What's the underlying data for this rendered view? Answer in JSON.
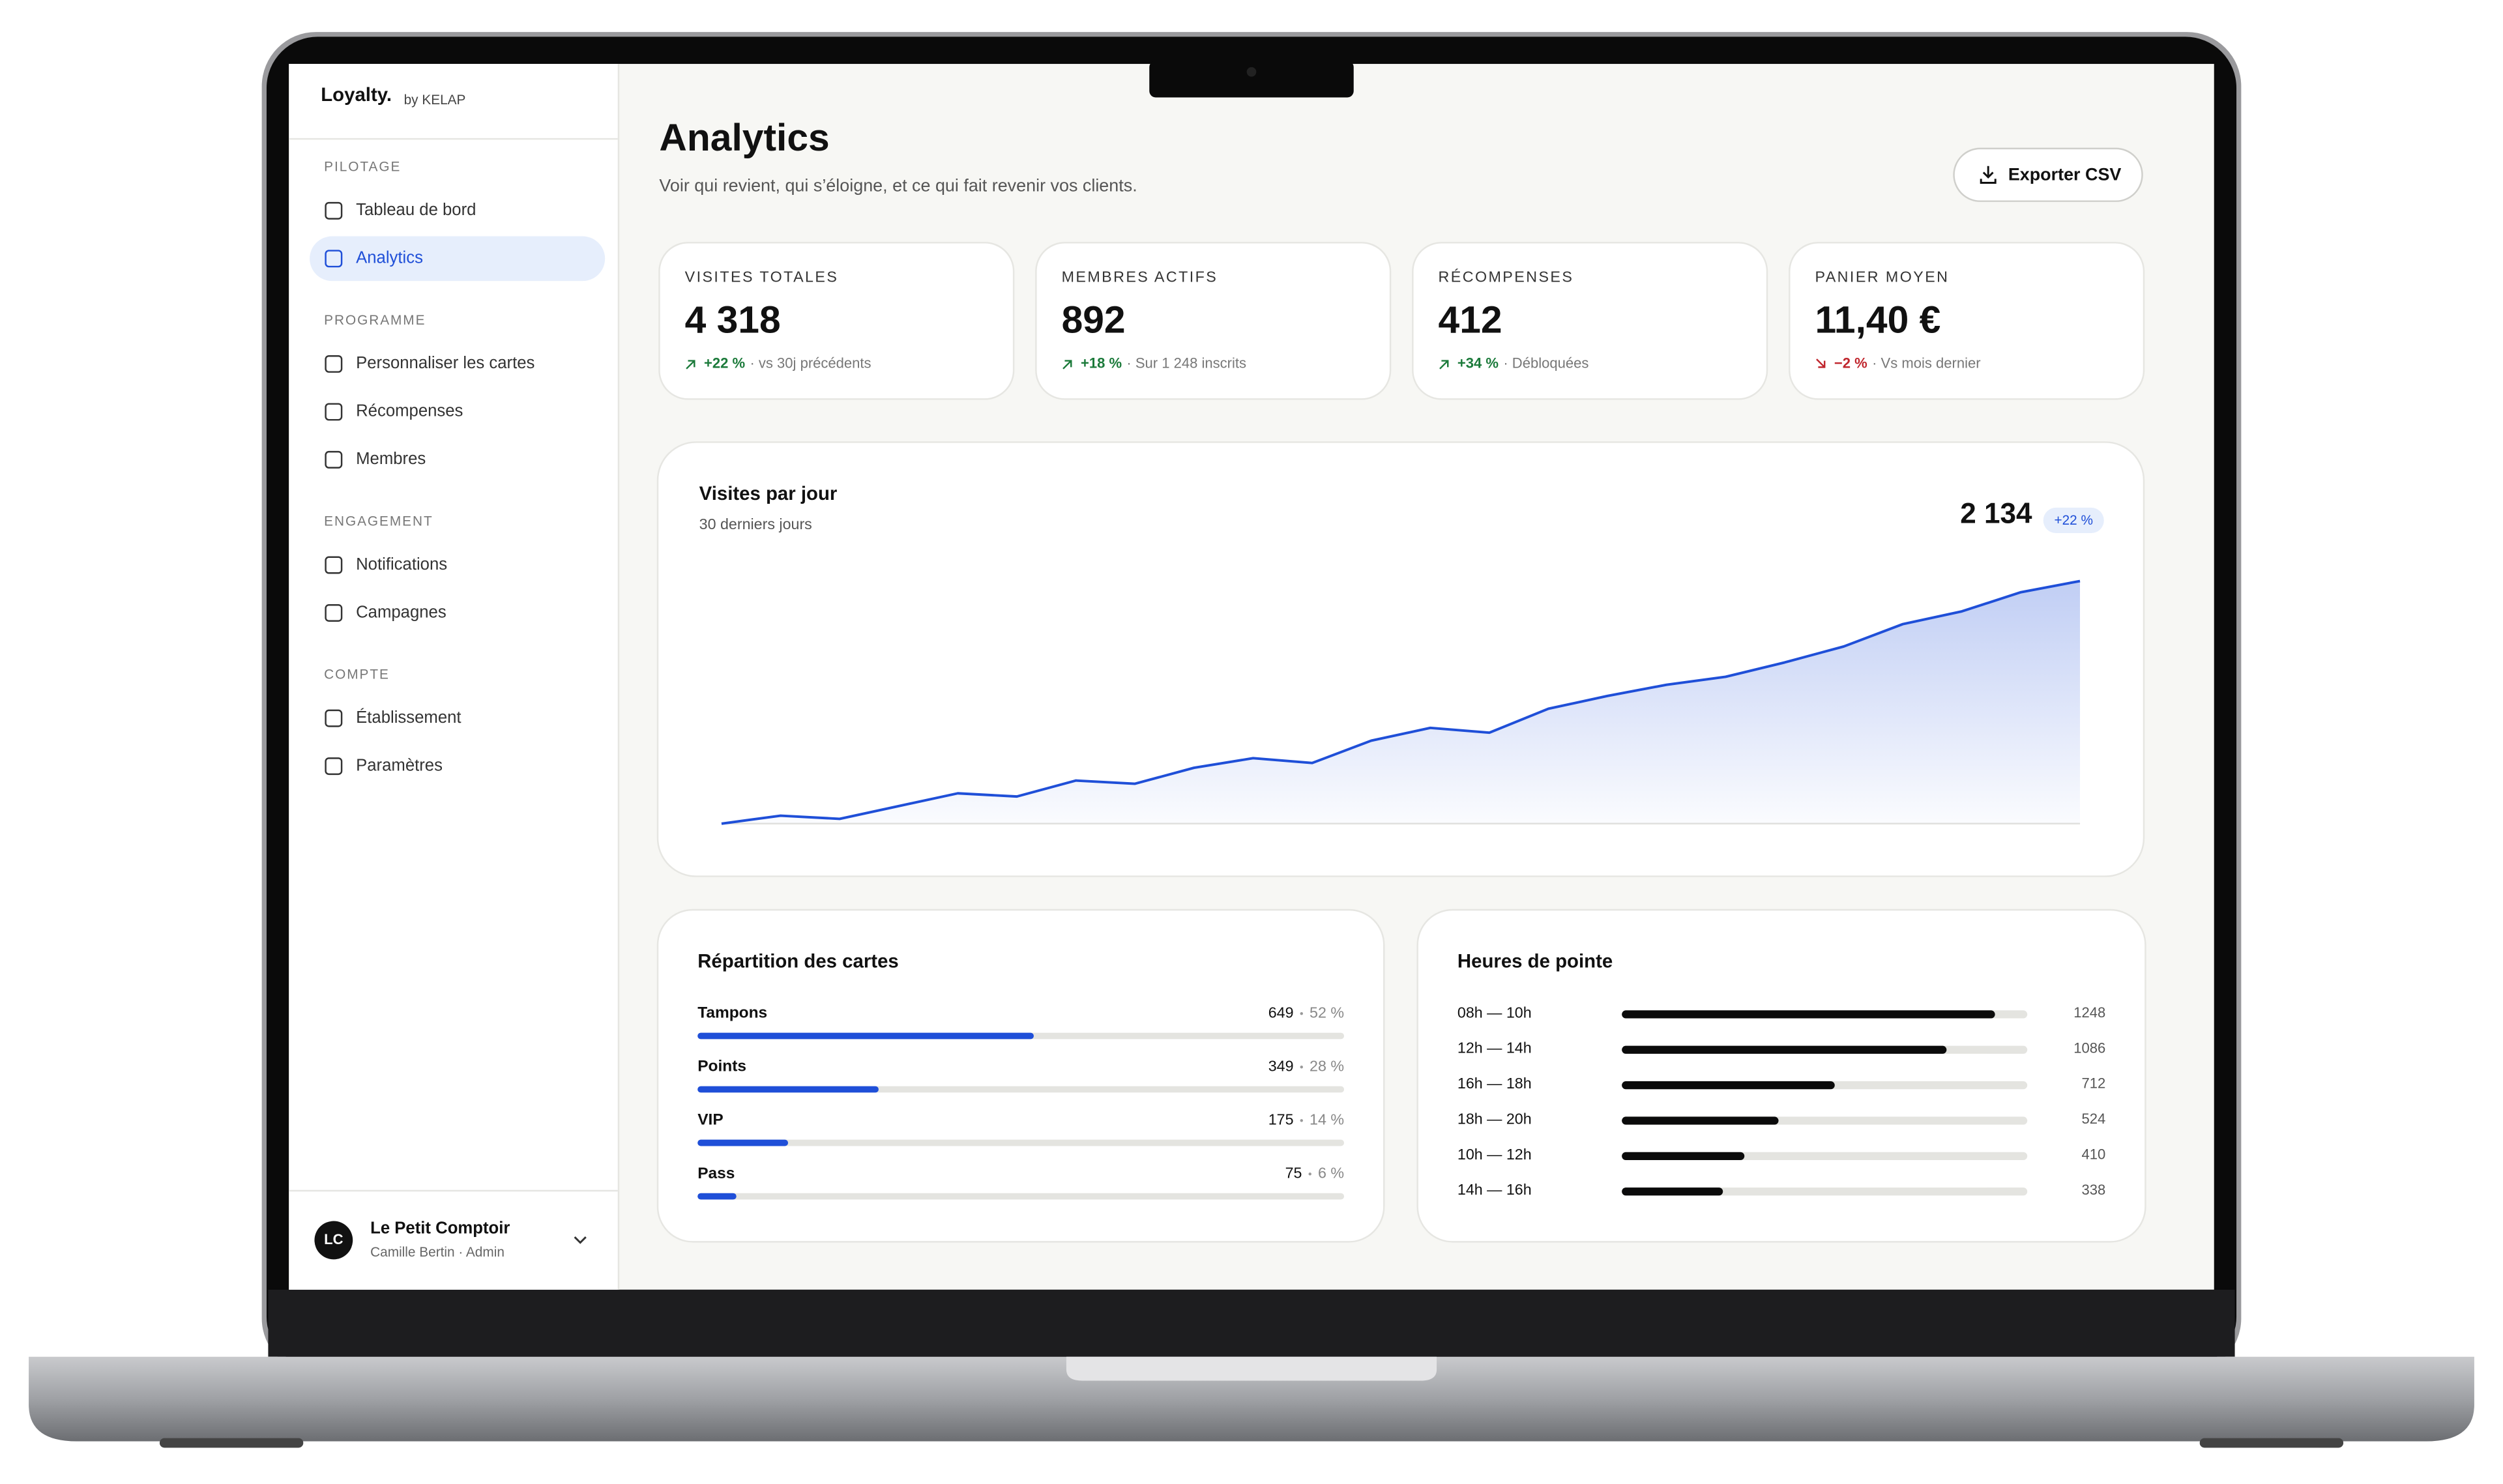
{
  "brand": {
    "name": "Loyalty.",
    "by": "by KELAP"
  },
  "nav": [
    {
      "section": "PILOTAGE",
      "items": [
        "Tableau de bord",
        "Analytics"
      ]
    },
    {
      "section": "PROGRAMME",
      "items": [
        "Personnaliser les cartes",
        "Récompenses",
        "Membres"
      ]
    },
    {
      "section": "ENGAGEMENT",
      "items": [
        "Notifications",
        "Campagnes"
      ]
    },
    {
      "section": "COMPTE",
      "items": [
        "Établissement",
        "Paramètres"
      ]
    }
  ],
  "active": [
    0,
    1
  ],
  "account": {
    "initials": "LC",
    "name": "Le Petit Comptoir",
    "role": "Camille Bertin · Admin"
  },
  "header": {
    "title": "Analytics",
    "subtitle": "Voir qui revient, qui s’éloigne, et ce qui fait revenir vos clients.",
    "button": "Exporter CSV"
  },
  "kpis": [
    {
      "label": "VISITES TOTALES",
      "value": "4 318",
      "delta": "+22 %",
      "note": "· vs 30j précédents",
      "direction": "up"
    },
    {
      "label": "MEMBRES ACTIFS",
      "value": "892",
      "delta": "+18 %",
      "note": "· Sur 1 248 inscrits",
      "direction": "up"
    },
    {
      "label": "RÉCOMPENSES",
      "value": "412",
      "delta": "+34 %",
      "note": "· Débloquées",
      "direction": "up"
    },
    {
      "label": "PANIER MOYEN",
      "value": "11,40 €",
      "delta": "−2 %",
      "note": "· Vs mois dernier",
      "direction": "down"
    }
  ],
  "chart_data": {
    "type": "line",
    "title": "Visites par jour",
    "subtitle": "30 derniers jours",
    "total": "2 134",
    "change": "+22 %",
    "values": [
      0,
      5,
      3,
      11,
      19,
      17,
      27,
      25,
      35,
      41,
      38,
      52,
      60,
      57,
      72,
      80,
      87,
      92,
      101,
      111,
      125,
      133,
      145,
      152
    ],
    "ylim": [
      0,
      152
    ],
    "color": "#1f4fd8"
  },
  "distribution": {
    "title": "Répartition des cartes",
    "xlim": [
      0,
      100
    ],
    "color": "#1f4fd8",
    "items": [
      {
        "name": "Tampons",
        "count": 649,
        "share": 52,
        "share_label": "52 %"
      },
      {
        "name": "Points",
        "count": 349,
        "share": 28,
        "share_label": "28 %"
      },
      {
        "name": "VIP",
        "count": 175,
        "share": 14,
        "share_label": "14 %"
      },
      {
        "name": "Pass",
        "count": 75,
        "share": 6,
        "share_label": "6 %"
      }
    ]
  },
  "peak_hours": {
    "title": "Heures de pointe",
    "xlim": [
      0,
      1356
    ],
    "color": "#0b0b0b",
    "items": [
      {
        "label": "08h — 10h",
        "value": 1248
      },
      {
        "label": "12h — 14h",
        "value": 1086
      },
      {
        "label": "16h — 18h",
        "value": 712
      },
      {
        "label": "18h — 20h",
        "value": 524
      },
      {
        "label": "10h — 12h",
        "value": 410
      },
      {
        "label": "14h — 16h",
        "value": 338
      }
    ]
  }
}
